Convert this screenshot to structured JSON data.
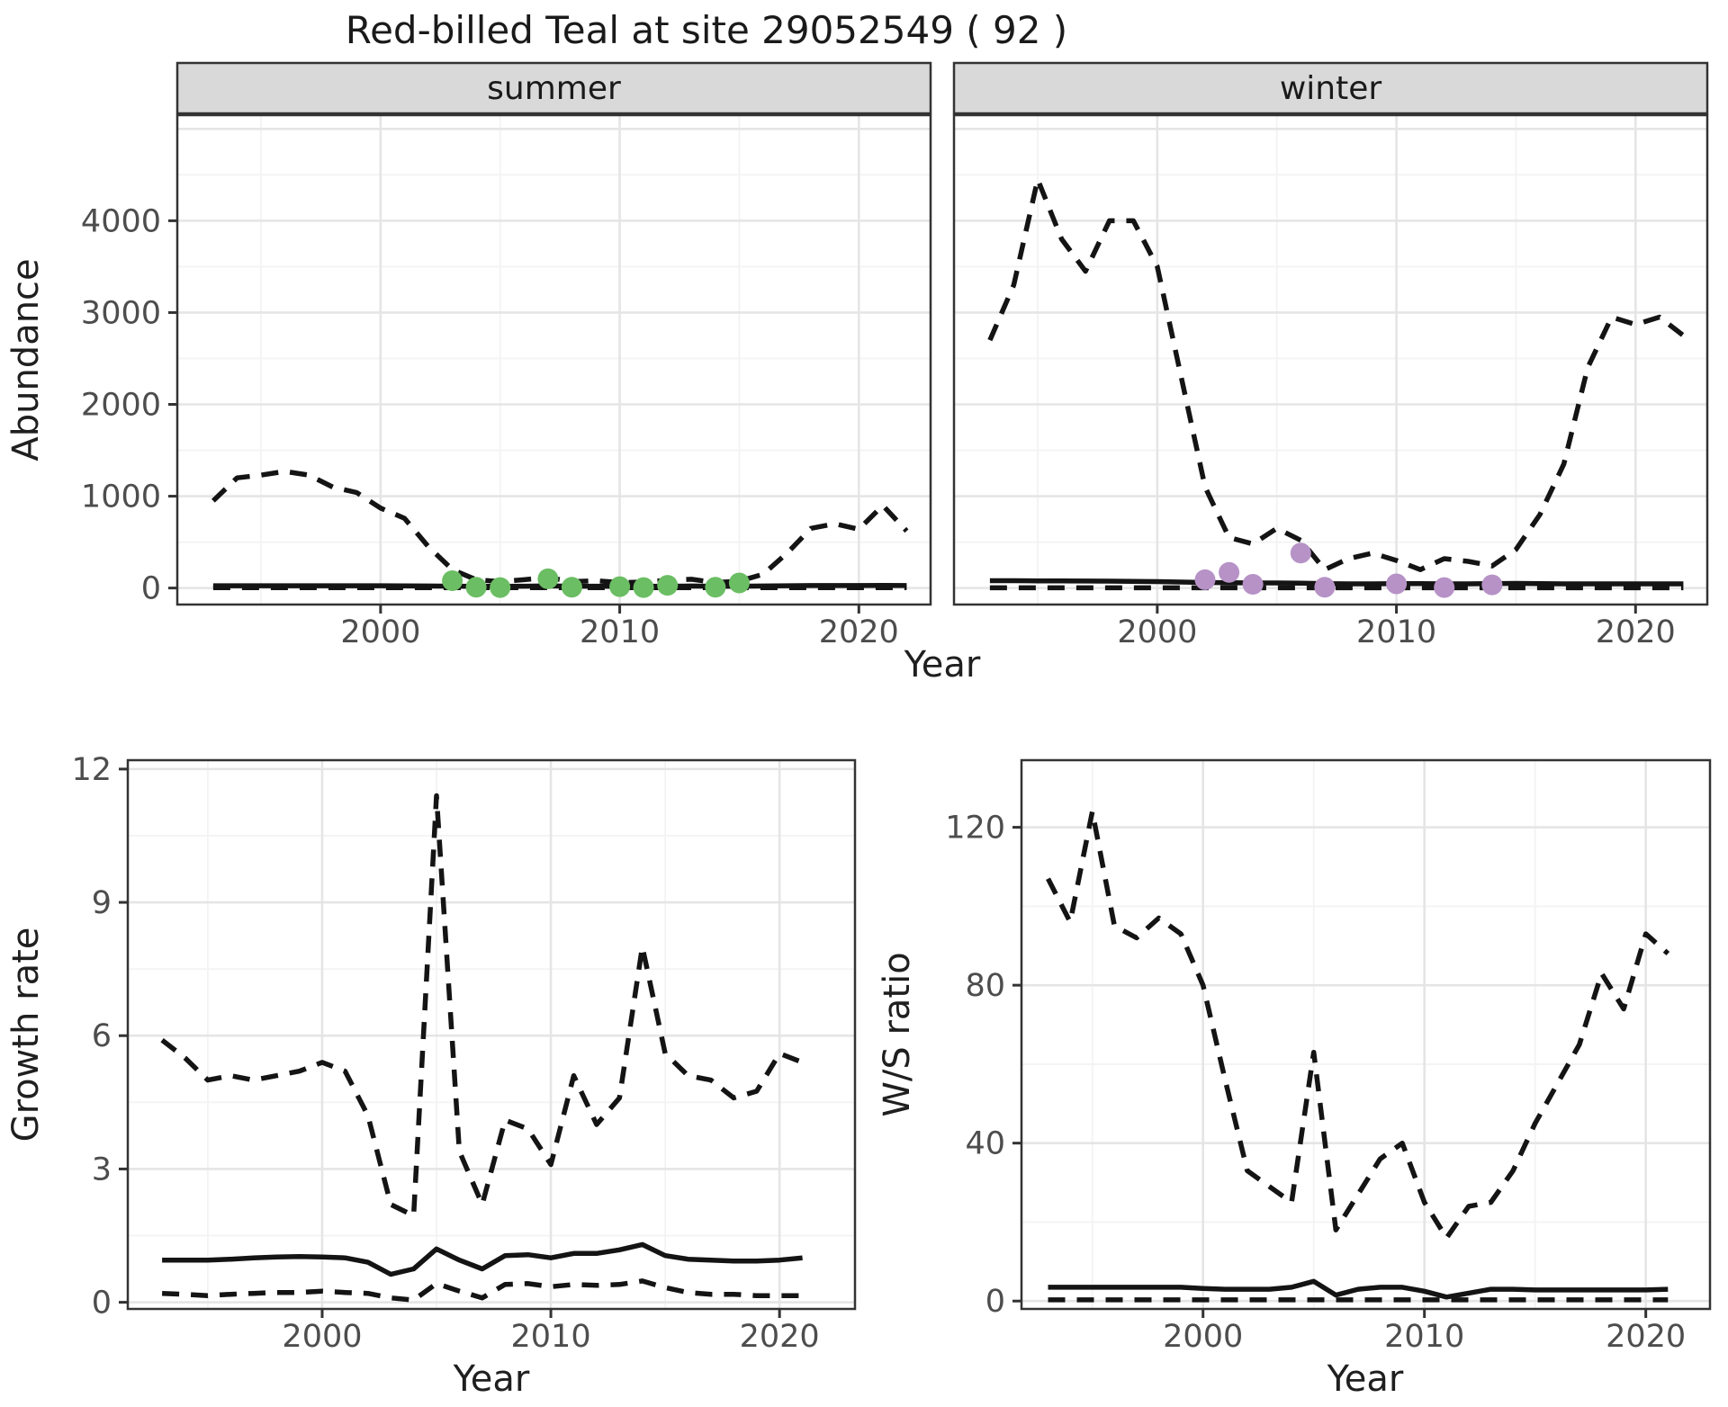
{
  "title": "Red-billed Teal at site 29052549 ( 92 )",
  "top_row": {
    "ylabel": "Abundance",
    "xlabel": "Year"
  },
  "bottom_row": {
    "growth": {
      "ylabel": "Growth rate",
      "xlabel": "Year"
    },
    "ws": {
      "ylabel": "W/S ratio",
      "xlabel": "Year"
    }
  },
  "colors": {
    "observed_summer": "#6bbe63",
    "observed_winter": "#b692c7",
    "line": "#141414",
    "strip_fill": "#d9d9d9",
    "grid_major": "#e5e5e5",
    "grid_minor": "#f3f3f3",
    "panel_border": "#333333",
    "axis_text": "#4d4d4d"
  },
  "chart_data": [
    {
      "id": "abundance-summer",
      "type": "line",
      "facet_label": "summer",
      "xlabel": "Year",
      "ylabel": "Abundance",
      "x_range": [
        1991.5,
        2023.0
      ],
      "y_range": [
        -180,
        5150
      ],
      "x_ticks": [
        2000,
        2010,
        2020
      ],
      "x_minor": [
        1995,
        2005,
        2015
      ],
      "y_ticks": [
        0,
        1000,
        2000,
        3000,
        4000
      ],
      "y_grid_major": [
        0,
        1000,
        2000,
        3000,
        4000,
        5000
      ],
      "y_minor": [
        500,
        1500,
        2500,
        3500,
        4500
      ],
      "years": [
        1993,
        1994,
        1995,
        1996,
        1997,
        1998,
        1999,
        2000,
        2001,
        2002,
        2003,
        2004,
        2005,
        2006,
        2007,
        2008,
        2009,
        2010,
        2011,
        2012,
        2013,
        2014,
        2015,
        2016,
        2017,
        2018,
        2019,
        2020,
        2021,
        2022
      ],
      "series": [
        {
          "name": "upper_95CI",
          "style": "dashed",
          "values": [
            950,
            1200,
            1230,
            1270,
            1230,
            1100,
            1040,
            870,
            760,
            450,
            200,
            90,
            70,
            90,
            115,
            70,
            80,
            60,
            65,
            85,
            95,
            60,
            75,
            150,
            380,
            650,
            700,
            640,
            900,
            620
          ]
        },
        {
          "name": "estimate",
          "style": "solid",
          "values": [
            25,
            25,
            25,
            25,
            25,
            25,
            25,
            25,
            24,
            22,
            20,
            18,
            18,
            20,
            24,
            20,
            20,
            18,
            18,
            20,
            22,
            18,
            20,
            22,
            25,
            27,
            27,
            27,
            29,
            27
          ]
        },
        {
          "name": "lower_95CI",
          "style": "dashed",
          "values": [
            3,
            3,
            3,
            3,
            3,
            3,
            3,
            3,
            3,
            3,
            3,
            3,
            3,
            3,
            3,
            3,
            3,
            3,
            3,
            3,
            3,
            3,
            3,
            3,
            3,
            3,
            3,
            3,
            3,
            3
          ]
        }
      ],
      "points": {
        "name": "observed_counts",
        "color": "#6bbe63",
        "years": [
          2003,
          2004,
          2005,
          2007,
          2008,
          2010,
          2011,
          2012,
          2014,
          2015
        ],
        "values": [
          80,
          8,
          5,
          100,
          8,
          15,
          5,
          30,
          8,
          55
        ]
      }
    },
    {
      "id": "abundance-winter",
      "type": "line",
      "facet_label": "winter",
      "xlabel": "Year",
      "ylabel": "Abundance",
      "x_range": [
        1991.5,
        2023.0
      ],
      "y_range": [
        -180,
        5150
      ],
      "x_ticks": [
        2000,
        2010,
        2020
      ],
      "x_minor": [
        1995,
        2005,
        2015
      ],
      "y_ticks": [
        0,
        1000,
        2000,
        3000,
        4000
      ],
      "y_grid_major": [
        0,
        1000,
        2000,
        3000,
        4000,
        5000
      ],
      "y_minor": [
        500,
        1500,
        2500,
        3500,
        4500
      ],
      "years": [
        1993,
        1994,
        1995,
        1996,
        1997,
        1998,
        1999,
        2000,
        2001,
        2002,
        2003,
        2004,
        2005,
        2006,
        2007,
        2008,
        2009,
        2010,
        2011,
        2012,
        2013,
        2014,
        2015,
        2016,
        2017,
        2018,
        2019,
        2020,
        2021,
        2022
      ],
      "series": [
        {
          "name": "upper_95CI",
          "style": "dashed",
          "values": [
            2700,
            3300,
            4450,
            3800,
            3450,
            4000,
            4000,
            3500,
            2300,
            1100,
            550,
            480,
            650,
            520,
            200,
            320,
            380,
            300,
            200,
            320,
            290,
            240,
            420,
            800,
            1350,
            2400,
            2950,
            2870,
            2950,
            2750
          ]
        },
        {
          "name": "estimate",
          "style": "solid",
          "values": [
            80,
            80,
            78,
            78,
            76,
            75,
            72,
            70,
            65,
            60,
            58,
            55,
            55,
            52,
            48,
            45,
            45,
            48,
            48,
            45,
            45,
            48,
            50,
            48,
            45,
            45,
            45,
            45,
            45,
            45
          ]
        },
        {
          "name": "lower_95CI",
          "style": "dashed",
          "values": [
            2,
            2,
            2,
            2,
            2,
            2,
            2,
            2,
            2,
            2,
            2,
            2,
            2,
            2,
            2,
            2,
            2,
            2,
            2,
            2,
            2,
            2,
            2,
            2,
            2,
            2,
            2,
            2,
            2,
            2
          ]
        }
      ],
      "points": {
        "name": "observed_counts",
        "color": "#b692c7",
        "years": [
          2002,
          2003,
          2004,
          2006,
          2007,
          2010,
          2012,
          2014
        ],
        "values": [
          90,
          170,
          40,
          380,
          8,
          45,
          5,
          35
        ]
      }
    },
    {
      "id": "growth-rate",
      "type": "line",
      "facet_label": "",
      "xlabel": "Year",
      "ylabel": "Growth rate",
      "x_range": [
        1991.5,
        2023.3
      ],
      "y_range": [
        -0.15,
        12.2
      ],
      "x_ticks": [
        2000,
        2010,
        2020
      ],
      "x_minor": [
        1995,
        2005,
        2015
      ],
      "y_ticks": [
        0,
        3,
        6,
        9,
        12
      ],
      "y_grid_major": [
        0,
        3,
        6,
        9,
        12
      ],
      "y_minor": [
        1.5,
        4.5,
        7.5,
        10.5
      ],
      "years": [
        1993,
        1994,
        1995,
        1996,
        1997,
        1998,
        1999,
        2000,
        2001,
        2002,
        2003,
        2004,
        2005,
        2006,
        2007,
        2008,
        2009,
        2010,
        2011,
        2012,
        2013,
        2014,
        2015,
        2016,
        2017,
        2018,
        2019,
        2020,
        2021
      ],
      "series": [
        {
          "name": "upper_95CI",
          "style": "dashed",
          "values": [
            5.9,
            5.5,
            5.0,
            5.1,
            5.0,
            5.1,
            5.2,
            5.4,
            5.2,
            4.2,
            2.2,
            1.95,
            11.4,
            3.4,
            2.2,
            4.1,
            3.9,
            3.1,
            5.1,
            4.0,
            4.6,
            8.0,
            5.6,
            5.1,
            5.0,
            4.6,
            4.75,
            5.6,
            5.4
          ]
        },
        {
          "name": "estimate",
          "style": "solid",
          "values": [
            0.95,
            0.95,
            0.95,
            0.97,
            1.0,
            1.02,
            1.03,
            1.02,
            1.0,
            0.9,
            0.63,
            0.75,
            1.2,
            0.95,
            0.75,
            1.05,
            1.07,
            1.0,
            1.1,
            1.1,
            1.18,
            1.3,
            1.05,
            0.97,
            0.95,
            0.93,
            0.93,
            0.95,
            1.0
          ]
        },
        {
          "name": "lower_95CI",
          "style": "dashed",
          "values": [
            0.2,
            0.18,
            0.15,
            0.18,
            0.2,
            0.22,
            0.22,
            0.25,
            0.22,
            0.2,
            0.1,
            0.05,
            0.42,
            0.25,
            0.1,
            0.4,
            0.42,
            0.35,
            0.4,
            0.38,
            0.4,
            0.48,
            0.33,
            0.22,
            0.18,
            0.18,
            0.15,
            0.15,
            0.15
          ]
        }
      ],
      "points": null
    },
    {
      "id": "ws-ratio",
      "type": "line",
      "facet_label": "",
      "xlabel": "Year",
      "ylabel": "W/S ratio",
      "x_range": [
        1991.8,
        2022.9
      ],
      "y_range": [
        -2,
        137
      ],
      "x_ticks": [
        2000,
        2010,
        2020
      ],
      "x_minor": [
        1995,
        2005,
        2015
      ],
      "y_ticks": [
        0,
        40,
        80,
        120
      ],
      "y_grid_major": [
        0,
        40,
        80,
        120
      ],
      "y_minor": [
        20,
        60,
        100
      ],
      "years": [
        1993,
        1994,
        1995,
        1996,
        1997,
        1998,
        1999,
        2000,
        2001,
        2002,
        2003,
        2004,
        2005,
        2006,
        2007,
        2008,
        2009,
        2010,
        2011,
        2012,
        2013,
        2014,
        2015,
        2016,
        2017,
        2018,
        2019,
        2020,
        2021
      ],
      "series": [
        {
          "name": "upper_95CI",
          "style": "dashed",
          "values": [
            107,
            96,
            124,
            95,
            92,
            97,
            93,
            80,
            56,
            33,
            29,
            25,
            63,
            18,
            27,
            36,
            40,
            25,
            16,
            24,
            25,
            33,
            45,
            55,
            65,
            83,
            74,
            93,
            88
          ]
        },
        {
          "name": "estimate",
          "style": "solid",
          "values": [
            3.5,
            3.5,
            3.5,
            3.5,
            3.5,
            3.5,
            3.5,
            3.2,
            3.0,
            3.0,
            3.0,
            3.5,
            5.0,
            1.5,
            3.0,
            3.5,
            3.5,
            2.5,
            1.0,
            2.0,
            3.0,
            3.0,
            2.8,
            2.8,
            2.8,
            2.8,
            2.8,
            2.8,
            3.0
          ]
        },
        {
          "name": "lower_95CI",
          "style": "dashed",
          "values": [
            0.3,
            0.3,
            0.3,
            0.3,
            0.3,
            0.3,
            0.3,
            0.3,
            0.3,
            0.3,
            0.3,
            0.3,
            0.3,
            0.3,
            0.3,
            0.3,
            0.3,
            0.3,
            0.3,
            0.3,
            0.3,
            0.3,
            0.3,
            0.3,
            0.3,
            0.3,
            0.3,
            0.3,
            0.3
          ]
        }
      ],
      "points": null
    }
  ]
}
